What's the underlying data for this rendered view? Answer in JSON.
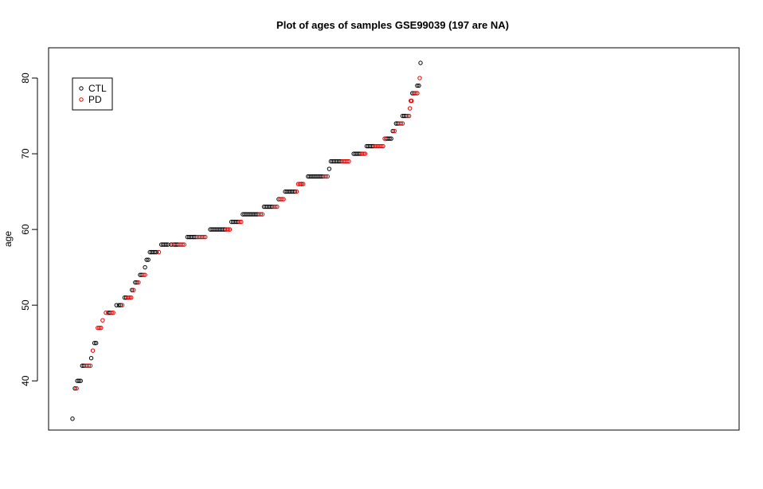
{
  "chart_data": {
    "type": "scatter",
    "title": "Plot of ages of samples GSE99039 (197 are NA)",
    "xlabel": "",
    "ylabel": "age",
    "x_axis_shown": false,
    "ylim": [
      33.5,
      84
    ],
    "y_ticks": [
      40,
      50,
      60,
      70,
      80
    ],
    "grid": false,
    "marker": "open-circle",
    "legend": {
      "position": "top-left",
      "entries": [
        {
          "label": "CTL",
          "color": "#000000"
        },
        {
          "label": "PD",
          "color": "#e00000"
        }
      ]
    },
    "series": [
      {
        "name": "CTL",
        "color": "#000000",
        "points": [
          [
            1,
            35
          ],
          [
            4,
            39
          ],
          [
            7,
            40
          ],
          [
            9,
            40
          ],
          [
            11,
            40
          ],
          [
            13,
            42
          ],
          [
            15,
            42
          ],
          [
            24,
            43
          ],
          [
            28,
            45
          ],
          [
            30,
            45
          ],
          [
            45,
            49
          ],
          [
            47,
            49
          ],
          [
            55,
            50
          ],
          [
            58,
            50
          ],
          [
            60,
            50
          ],
          [
            65,
            51
          ],
          [
            67,
            51
          ],
          [
            74,
            52
          ],
          [
            78,
            53
          ],
          [
            80,
            53
          ],
          [
            84,
            54
          ],
          [
            86,
            54
          ],
          [
            90,
            55
          ],
          [
            92,
            56
          ],
          [
            94,
            56
          ],
          [
            96,
            57
          ],
          [
            98,
            57
          ],
          [
            100,
            57
          ],
          [
            102,
            57
          ],
          [
            104,
            57
          ],
          [
            110,
            58
          ],
          [
            112,
            58
          ],
          [
            114,
            58
          ],
          [
            116,
            58
          ],
          [
            118,
            58
          ],
          [
            122,
            58
          ],
          [
            126,
            58
          ],
          [
            128,
            58
          ],
          [
            130,
            58
          ],
          [
            142,
            59
          ],
          [
            144,
            59
          ],
          [
            146,
            59
          ],
          [
            148,
            59
          ],
          [
            150,
            59
          ],
          [
            152,
            59
          ],
          [
            170,
            60
          ],
          [
            172,
            60
          ],
          [
            174,
            60
          ],
          [
            176,
            60
          ],
          [
            178,
            60
          ],
          [
            180,
            60
          ],
          [
            182,
            60
          ],
          [
            184,
            60
          ],
          [
            186,
            60
          ],
          [
            188,
            60
          ],
          [
            196,
            61
          ],
          [
            198,
            61
          ],
          [
            200,
            61
          ],
          [
            202,
            61
          ],
          [
            204,
            61
          ],
          [
            210,
            62
          ],
          [
            212,
            62
          ],
          [
            214,
            62
          ],
          [
            216,
            62
          ],
          [
            218,
            62
          ],
          [
            220,
            62
          ],
          [
            222,
            62
          ],
          [
            224,
            62
          ],
          [
            226,
            62
          ],
          [
            228,
            62
          ],
          [
            236,
            63
          ],
          [
            238,
            63
          ],
          [
            240,
            63
          ],
          [
            242,
            63
          ],
          [
            244,
            63
          ],
          [
            246,
            63
          ],
          [
            254,
            64
          ],
          [
            262,
            65
          ],
          [
            264,
            65
          ],
          [
            266,
            65
          ],
          [
            268,
            65
          ],
          [
            270,
            65
          ],
          [
            272,
            65
          ],
          [
            274,
            65
          ],
          [
            282,
            66
          ],
          [
            290,
            67
          ],
          [
            292,
            67
          ],
          [
            294,
            67
          ],
          [
            296,
            67
          ],
          [
            298,
            67
          ],
          [
            300,
            67
          ],
          [
            302,
            67
          ],
          [
            304,
            67
          ],
          [
            306,
            67
          ],
          [
            308,
            67
          ],
          [
            316,
            68
          ],
          [
            318,
            69
          ],
          [
            320,
            69
          ],
          [
            322,
            69
          ],
          [
            324,
            69
          ],
          [
            326,
            69
          ],
          [
            328,
            69
          ],
          [
            330,
            69
          ],
          [
            346,
            70
          ],
          [
            348,
            70
          ],
          [
            350,
            70
          ],
          [
            352,
            70
          ],
          [
            354,
            70
          ],
          [
            362,
            71
          ],
          [
            364,
            71
          ],
          [
            366,
            71
          ],
          [
            368,
            71
          ],
          [
            370,
            71
          ],
          [
            386,
            72
          ],
          [
            388,
            72
          ],
          [
            390,
            72
          ],
          [
            392,
            72
          ],
          [
            394,
            73
          ],
          [
            398,
            74
          ],
          [
            400,
            74
          ],
          [
            406,
            75
          ],
          [
            408,
            75
          ],
          [
            410,
            75
          ],
          [
            418,
            78
          ],
          [
            420,
            78
          ],
          [
            424,
            79
          ],
          [
            426,
            79
          ],
          [
            428,
            82
          ]
        ]
      },
      {
        "name": "PD",
        "color": "#e00000",
        "points": [
          [
            6,
            39
          ],
          [
            17,
            42
          ],
          [
            19,
            42
          ],
          [
            21,
            42
          ],
          [
            23,
            42
          ],
          [
            26,
            44
          ],
          [
            32,
            47
          ],
          [
            34,
            47
          ],
          [
            36,
            47
          ],
          [
            38,
            48
          ],
          [
            42,
            49
          ],
          [
            49,
            49
          ],
          [
            51,
            49
          ],
          [
            62,
            50
          ],
          [
            69,
            51
          ],
          [
            71,
            51
          ],
          [
            73,
            51
          ],
          [
            76,
            52
          ],
          [
            82,
            53
          ],
          [
            88,
            54
          ],
          [
            90,
            54
          ],
          [
            107,
            57
          ],
          [
            124,
            58
          ],
          [
            132,
            58
          ],
          [
            134,
            58
          ],
          [
            136,
            58
          ],
          [
            138,
            58
          ],
          [
            154,
            59
          ],
          [
            156,
            59
          ],
          [
            158,
            59
          ],
          [
            160,
            59
          ],
          [
            162,
            59
          ],
          [
            164,
            59
          ],
          [
            190,
            60
          ],
          [
            192,
            60
          ],
          [
            194,
            60
          ],
          [
            206,
            61
          ],
          [
            208,
            61
          ],
          [
            230,
            62
          ],
          [
            232,
            62
          ],
          [
            234,
            62
          ],
          [
            248,
            63
          ],
          [
            250,
            63
          ],
          [
            252,
            63
          ],
          [
            256,
            64
          ],
          [
            258,
            64
          ],
          [
            260,
            64
          ],
          [
            276,
            65
          ],
          [
            278,
            66
          ],
          [
            280,
            66
          ],
          [
            284,
            66
          ],
          [
            310,
            67
          ],
          [
            312,
            67
          ],
          [
            314,
            67
          ],
          [
            332,
            69
          ],
          [
            334,
            69
          ],
          [
            336,
            69
          ],
          [
            338,
            69
          ],
          [
            340,
            69
          ],
          [
            356,
            70
          ],
          [
            358,
            70
          ],
          [
            360,
            70
          ],
          [
            372,
            71
          ],
          [
            374,
            71
          ],
          [
            376,
            71
          ],
          [
            378,
            71
          ],
          [
            380,
            71
          ],
          [
            382,
            71
          ],
          [
            384,
            72
          ],
          [
            396,
            73
          ],
          [
            402,
            74
          ],
          [
            404,
            74
          ],
          [
            406,
            74
          ],
          [
            412,
            75
          ],
          [
            414,
            75
          ],
          [
            415,
            76
          ],
          [
            416,
            77
          ],
          [
            417,
            77
          ],
          [
            420,
            78
          ],
          [
            422,
            78
          ],
          [
            424,
            78
          ],
          [
            427,
            80
          ]
        ]
      }
    ]
  }
}
